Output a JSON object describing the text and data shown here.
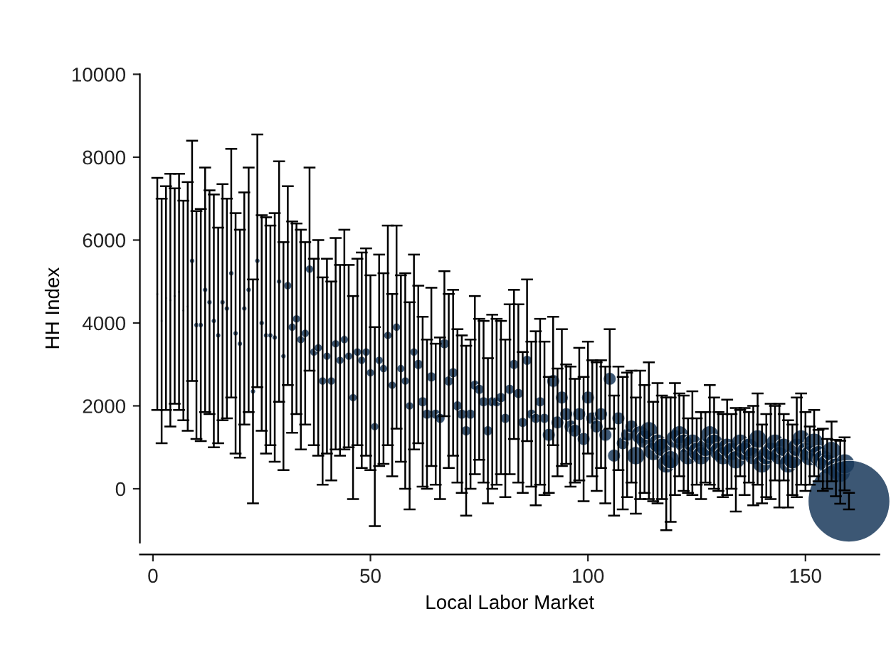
{
  "chart_data": {
    "type": "bubble",
    "xlabel": "Local Labor Market",
    "ylabel": "HH Index",
    "x": [
      1,
      2,
      3,
      4,
      5,
      6,
      7,
      8,
      9,
      10,
      11,
      12,
      13,
      14,
      15,
      16,
      17,
      18,
      19,
      20,
      21,
      22,
      23,
      24,
      25,
      26,
      27,
      28,
      29,
      30,
      31,
      32,
      33,
      34,
      35,
      36,
      37,
      38,
      39,
      40,
      41,
      42,
      43,
      44,
      45,
      46,
      47,
      48,
      49,
      50,
      51,
      52,
      53,
      54,
      55,
      56,
      57,
      58,
      59,
      60,
      61,
      62,
      63,
      64,
      65,
      66,
      67,
      68,
      69,
      70,
      71,
      72,
      73,
      74,
      75,
      76,
      77,
      78,
      79,
      80,
      81,
      82,
      83,
      84,
      85,
      86,
      87,
      88,
      89,
      90,
      91,
      92,
      93,
      94,
      95,
      96,
      97,
      98,
      99,
      100,
      101,
      102,
      103,
      104,
      105,
      106,
      107,
      108,
      109,
      110,
      111,
      112,
      113,
      114,
      115,
      116,
      117,
      118,
      119,
      120,
      121,
      122,
      123,
      124,
      125,
      126,
      127,
      128,
      129,
      130,
      131,
      132,
      133,
      134,
      135,
      136,
      137,
      138,
      139,
      140,
      141,
      142,
      143,
      144,
      145,
      146,
      147,
      148,
      149,
      150,
      151,
      152,
      153,
      154,
      155,
      156,
      157,
      158,
      159,
      160
    ],
    "series": [
      {
        "color": "#1a3a5c",
        "values": [
          4700,
          4050,
          4600,
          4550,
          4650,
          4750,
          4300,
          4400,
          5500,
          3950,
          3950,
          4800,
          4500,
          4050,
          3700,
          4500,
          4350,
          5200,
          3750,
          3500,
          4350,
          4800,
          2350,
          5500,
          4000,
          3700,
          3700,
          3650,
          5000,
          3200,
          4900,
          3900,
          4100,
          3600,
          3750,
          5300,
          3300,
          3400,
          2600,
          3200,
          2600,
          3500,
          3100,
          3600,
          3200,
          2200,
          3300,
          3100,
          3300,
          2800,
          1500,
          3100,
          2900,
          3700,
          2500,
          3900,
          2900,
          2600,
          2000,
          3300,
          3000,
          2100,
          1800,
          2700,
          1800,
          1700,
          3500,
          2600,
          2800,
          2000,
          1800,
          1400,
          1800,
          2500,
          2400,
          2100,
          1400,
          2100,
          2100,
          2200,
          1700,
          2400,
          3000,
          2300,
          1600,
          3100,
          1800,
          1700,
          2100,
          1700,
          1300,
          2600,
          1600,
          2200,
          1800,
          1500,
          1400,
          1800,
          1200,
          2200,
          1700,
          1500,
          1800,
          1300,
          2650,
          800,
          1700,
          1100,
          1300,
          1500,
          800,
          1300,
          1200,
          1400,
          900,
          1100,
          1000,
          600,
          700,
          1200,
          1300,
          1100,
          800,
          1100,
          900,
          800,
          1000,
          1300,
          1100,
          900,
          800,
          1000,
          900,
          700,
          1100,
          900,
          1000,
          800,
          1200,
          600,
          800,
          900,
          1100,
          800,
          1000,
          600,
          700,
          1000,
          1200,
          900,
          800,
          1100,
          800,
          700,
          600,
          900,
          500,
          400,
          600,
          -300
        ],
        "errors": [
          2800,
          2950,
          2700,
          3050,
          2600,
          2850,
          2650,
          3000,
          2900,
          2750,
          2800,
          2950,
          2700,
          3050,
          2600,
          2850,
          2650,
          3000,
          2900,
          2750,
          2800,
          2950,
          2700,
          3050,
          2600,
          2850,
          2650,
          3000,
          2900,
          2750,
          2400,
          2550,
          2300,
          2650,
          2200,
          2450,
          2250,
          2600,
          2500,
          2350,
          2400,
          2550,
          2300,
          2650,
          2200,
          2450,
          2250,
          2600,
          2500,
          2350,
          2400,
          2550,
          2300,
          2650,
          2200,
          2450,
          2250,
          2600,
          2500,
          2350,
          1900,
          2050,
          1800,
          2150,
          1700,
          1950,
          1750,
          2100,
          2000,
          1850,
          1900,
          2050,
          1800,
          2150,
          1700,
          1950,
          1750,
          2100,
          2000,
          1850,
          1900,
          2050,
          1800,
          2150,
          1700,
          1950,
          1750,
          2100,
          2000,
          1850,
          1400,
          1550,
          1300,
          1650,
          1200,
          1450,
          1250,
          1600,
          1500,
          1350,
          1400,
          1550,
          1300,
          1650,
          1200,
          1450,
          1250,
          1600,
          1500,
          1350,
          1400,
          1550,
          1300,
          1650,
          1200,
          1450,
          1250,
          1600,
          1500,
          1350,
          1000,
          1150,
          900,
          1250,
          800,
          1050,
          850,
          1200,
          1100,
          950,
          1000,
          1150,
          900,
          1250,
          800,
          1050,
          850,
          1200,
          1100,
          950,
          1000,
          1150,
          900,
          1250,
          800,
          1050,
          850,
          1200,
          1100,
          950,
          700,
          800,
          620,
          750,
          600,
          720,
          680,
          760,
          640,
          200
        ],
        "sizes": [
          0.001,
          0.001,
          0.001,
          0.001,
          0.001,
          0.001,
          0.001,
          0.001,
          0.004,
          0.004,
          0.004,
          0.004,
          0.004,
          0.004,
          0.004,
          0.004,
          0.004,
          0.004,
          0.004,
          0.004,
          0.004,
          0.004,
          0.004,
          0.004,
          0.004,
          0.004,
          0.004,
          0.004,
          0.004,
          0.004,
          0.01,
          0.01,
          0.01,
          0.01,
          0.01,
          0.01,
          0.01,
          0.01,
          0.01,
          0.01,
          0.01,
          0.01,
          0.01,
          0.01,
          0.01,
          0.01,
          0.01,
          0.01,
          0.01,
          0.01,
          0.01,
          0.01,
          0.01,
          0.01,
          0.01,
          0.01,
          0.01,
          0.01,
          0.01,
          0.01,
          0.015,
          0.015,
          0.015,
          0.015,
          0.015,
          0.015,
          0.015,
          0.015,
          0.015,
          0.015,
          0.015,
          0.015,
          0.015,
          0.015,
          0.015,
          0.015,
          0.015,
          0.015,
          0.015,
          0.015,
          0.015,
          0.015,
          0.015,
          0.015,
          0.015,
          0.015,
          0.015,
          0.015,
          0.015,
          0.015,
          0.025,
          0.025,
          0.025,
          0.025,
          0.025,
          0.025,
          0.025,
          0.025,
          0.025,
          0.025,
          0.025,
          0.025,
          0.025,
          0.025,
          0.025,
          0.025,
          0.025,
          0.025,
          0.025,
          0.025,
          0.05,
          0.05,
          0.05,
          0.05,
          0.05,
          0.05,
          0.05,
          0.05,
          0.05,
          0.05,
          0.05,
          0.05,
          0.05,
          0.05,
          0.05,
          0.05,
          0.05,
          0.05,
          0.05,
          0.05,
          0.05,
          0.05,
          0.05,
          0.05,
          0.05,
          0.05,
          0.05,
          0.05,
          0.05,
          0.05,
          0.05,
          0.05,
          0.05,
          0.05,
          0.05,
          0.05,
          0.05,
          0.05,
          0.05,
          0.05,
          0.06,
          0.06,
          0.06,
          0.06,
          0.06,
          0.06,
          0.06,
          0.06,
          0.06,
          1
        ]
      }
    ],
    "xlim": [
      -3,
      167
    ],
    "ylim": [
      -1300,
      10000
    ],
    "xticks": [
      0,
      50,
      100,
      150
    ],
    "yticks": [
      0,
      2000,
      4000,
      6000,
      8000,
      10000
    ],
    "marker": "circle",
    "grid": false,
    "legend": false
  }
}
